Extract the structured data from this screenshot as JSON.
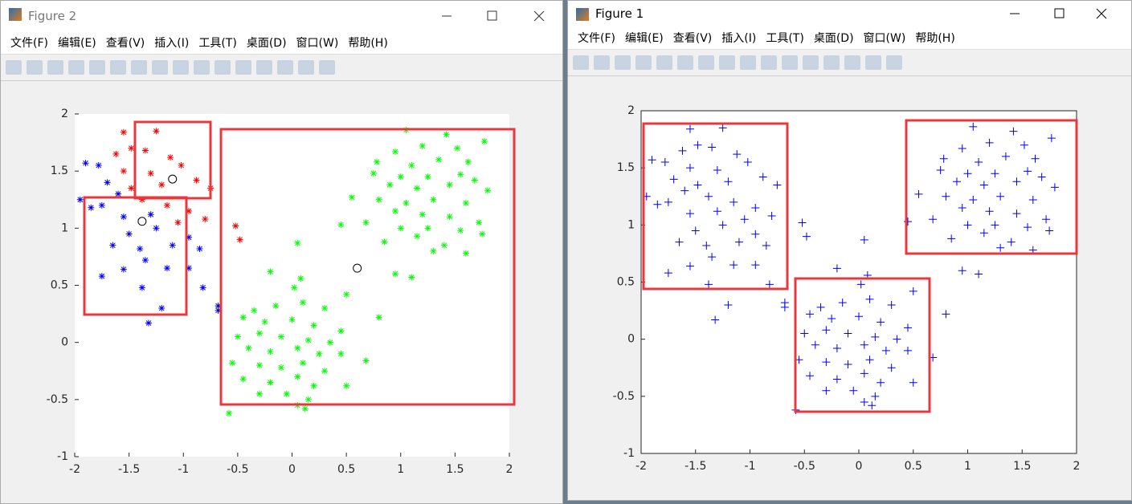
{
  "windows": [
    {
      "title": "Figure 2",
      "menu": [
        "文件(F)",
        "编辑(E)",
        "查看(V)",
        "插入(I)",
        "工具(T)",
        "桌面(D)",
        "窗口(W)",
        "帮助(H)"
      ]
    },
    {
      "title": "Figure 1",
      "menu": [
        "文件(F)",
        "编辑(E)",
        "查看(V)",
        "插入(I)",
        "工具(T)",
        "桌面(D)",
        "窗口(W)",
        "帮助(H)"
      ]
    }
  ],
  "chart_data": [
    {
      "type": "scatter",
      "box": false,
      "xlim": [
        -2,
        2
      ],
      "ylim": [
        -1,
        2
      ],
      "xticks": [
        -2,
        -1.5,
        -1,
        -0.5,
        0,
        0.5,
        1,
        1.5,
        2
      ],
      "yticks": [
        -1,
        -0.5,
        0,
        0.5,
        1,
        1.5,
        2
      ],
      "series": [
        {
          "color": "#ff0000",
          "marker": "*",
          "x": [
            -1.55,
            -1.25,
            -1.62,
            -1.48,
            -1.35,
            -1.12,
            -1.55,
            -1.3,
            -1.02,
            -0.88,
            -1.48,
            -1.2,
            -0.75,
            -1.38,
            -1.15,
            -0.95,
            -0.8,
            -1.05,
            -0.52,
            -0.48
          ],
          "y": [
            1.84,
            1.85,
            1.65,
            1.7,
            1.68,
            1.62,
            1.5,
            1.48,
            1.55,
            1.42,
            1.35,
            1.38,
            1.35,
            1.25,
            1.2,
            1.15,
            1.08,
            1.05,
            1.02,
            0.9
          ]
        },
        {
          "color": "#0000ff",
          "marker": "*",
          "x": [
            -1.78,
            -1.9,
            -1.7,
            -1.95,
            -1.75,
            -1.6,
            -1.85,
            -1.55,
            -1.3,
            -1.5,
            -1.25,
            -0.95,
            -1.65,
            -1.4,
            -1.1,
            -0.85,
            -1.35,
            -1.15,
            -0.95,
            -1.55,
            -1.75,
            -1.38,
            -0.82,
            -1.2,
            -1.32,
            -0.68,
            -0.68
          ],
          "y": [
            1.55,
            1.57,
            1.4,
            1.25,
            1.2,
            1.3,
            1.18,
            1.1,
            1.12,
            0.95,
            1.0,
            0.92,
            0.85,
            0.82,
            0.85,
            0.82,
            0.72,
            0.65,
            0.65,
            0.64,
            0.58,
            0.48,
            0.48,
            0.3,
            0.17,
            0.32,
            0.28
          ]
        },
        {
          "color": "#00ff00",
          "marker": "*",
          "x": [
            1.05,
            1.42,
            1.77,
            0.95,
            1.2,
            1.52,
            0.78,
            1.1,
            1.35,
            1.62,
            0.75,
            1.0,
            1.25,
            1.55,
            1.68,
            0.9,
            1.15,
            1.45,
            1.8,
            0.55,
            0.8,
            1.05,
            1.3,
            1.6,
            0.95,
            1.2,
            1.45,
            1.72,
            0.68,
            1.0,
            1.25,
            1.55,
            0.45,
            0.85,
            1.15,
            1.75,
            1.4,
            1.3,
            1.6,
            0.95,
            1.1,
            0.8,
            0.05,
            0.08,
            0.02,
            -0.2,
            0.5,
            -0.35,
            -0.15,
            0.1,
            0.3,
            -0.45,
            -0.25,
            0.0,
            0.2,
            0.45,
            -0.5,
            -0.3,
            -0.1,
            0.15,
            0.35,
            -0.4,
            -0.2,
            0.05,
            0.25,
            0.45,
            -0.55,
            -0.3,
            -0.1,
            0.1,
            0.3,
            0.68,
            -0.45,
            -0.2,
            0.05,
            0.2,
            -0.3,
            -0.05,
            0.15,
            0.5,
            -0.58,
            0.05,
            0.12
          ],
          "y": [
            1.86,
            1.82,
            1.76,
            1.67,
            1.72,
            1.7,
            1.58,
            1.55,
            1.6,
            1.58,
            1.48,
            1.45,
            1.45,
            1.47,
            1.42,
            1.38,
            1.35,
            1.38,
            1.33,
            1.27,
            1.25,
            1.22,
            1.25,
            1.22,
            1.15,
            1.12,
            1.1,
            1.05,
            1.05,
            1.0,
            1.0,
            0.98,
            1.03,
            0.88,
            0.93,
            0.95,
            0.85,
            0.8,
            0.78,
            0.6,
            0.57,
            0.22,
            0.87,
            0.56,
            0.48,
            0.62,
            0.42,
            0.28,
            0.32,
            0.35,
            0.3,
            0.22,
            0.18,
            0.2,
            0.15,
            0.1,
            0.05,
            0.08,
            0.05,
            0.02,
            0.0,
            -0.05,
            -0.08,
            -0.05,
            -0.1,
            -0.1,
            -0.18,
            -0.2,
            -0.22,
            -0.18,
            -0.25,
            -0.16,
            -0.32,
            -0.35,
            -0.3,
            -0.38,
            -0.45,
            -0.45,
            -0.5,
            -0.38,
            -0.62,
            -0.55,
            -0.58
          ]
        },
        {
          "color": "#000000",
          "marker": "o",
          "x": [
            -1.1,
            -1.38,
            0.6
          ],
          "y": [
            1.43,
            1.06,
            0.65
          ]
        }
      ]
    },
    {
      "type": "scatter",
      "box": true,
      "xlim": [
        -2,
        2
      ],
      "ylim": [
        -1,
        2
      ],
      "xticks": [
        -2,
        -1.5,
        -1,
        -0.5,
        0,
        0.5,
        1,
        1.5,
        2
      ],
      "yticks": [
        -1,
        -0.5,
        0,
        0.5,
        1,
        1.5,
        2
      ],
      "series": [
        {
          "color": "#0000ff",
          "marker": "+",
          "x": [
            -1.55,
            -1.25,
            -1.62,
            -1.48,
            -1.35,
            -1.12,
            -1.78,
            -1.9,
            -1.55,
            -1.3,
            -1.02,
            -0.88,
            -1.7,
            -1.48,
            -1.2,
            -0.75,
            -1.95,
            -1.75,
            -1.6,
            -1.38,
            -1.15,
            -0.95,
            -1.85,
            -1.55,
            -1.3,
            -1.05,
            -0.8,
            -1.5,
            -1.25,
            -0.95,
            -1.65,
            -1.4,
            -1.1,
            -0.85,
            -1.35,
            -1.15,
            -0.95,
            -1.55,
            -1.75,
            -1.38,
            -0.82,
            -1.2,
            -1.32,
            1.05,
            1.42,
            1.77,
            0.95,
            1.2,
            1.52,
            0.78,
            1.1,
            1.35,
            1.62,
            0.75,
            1.0,
            1.25,
            1.55,
            1.68,
            0.9,
            1.15,
            1.45,
            1.8,
            0.55,
            0.8,
            1.05,
            1.3,
            1.6,
            0.95,
            1.2,
            1.45,
            1.72,
            0.68,
            1.0,
            1.25,
            1.55,
            0.45,
            0.85,
            1.15,
            1.75,
            1.4,
            1.3,
            1.6,
            0.95,
            1.1,
            0.8,
            0.05,
            0.08,
            0.02,
            -0.2,
            0.5,
            -0.35,
            -0.15,
            0.1,
            0.3,
            -0.45,
            -0.25,
            0.0,
            0.2,
            0.45,
            -0.5,
            -0.3,
            -0.1,
            0.15,
            0.35,
            -0.4,
            -0.2,
            0.05,
            0.25,
            0.45,
            -0.55,
            -0.3,
            -0.1,
            0.1,
            0.3,
            0.68,
            -0.45,
            -0.2,
            0.05,
            0.2,
            -0.3,
            -0.05,
            0.15,
            0.5,
            -0.58,
            0.05,
            0.12,
            -0.52,
            -0.48,
            -0.68,
            -0.68
          ],
          "y": [
            1.84,
            1.85,
            1.65,
            1.7,
            1.68,
            1.62,
            1.55,
            1.57,
            1.5,
            1.48,
            1.55,
            1.42,
            1.4,
            1.35,
            1.38,
            1.35,
            1.25,
            1.2,
            1.3,
            1.25,
            1.2,
            1.15,
            1.18,
            1.1,
            1.12,
            1.05,
            1.08,
            0.95,
            1.0,
            0.92,
            0.85,
            0.82,
            0.85,
            0.82,
            0.72,
            0.65,
            0.65,
            0.64,
            0.58,
            0.48,
            0.48,
            0.3,
            0.17,
            1.86,
            1.82,
            1.76,
            1.67,
            1.72,
            1.7,
            1.58,
            1.55,
            1.6,
            1.58,
            1.48,
            1.45,
            1.45,
            1.47,
            1.42,
            1.38,
            1.35,
            1.38,
            1.33,
            1.27,
            1.25,
            1.22,
            1.25,
            1.22,
            1.15,
            1.12,
            1.1,
            1.05,
            1.05,
            1.0,
            1.0,
            0.98,
            1.03,
            0.88,
            0.93,
            0.95,
            0.85,
            0.8,
            0.78,
            0.6,
            0.57,
            0.22,
            0.87,
            0.56,
            0.48,
            0.62,
            0.42,
            0.28,
            0.32,
            0.35,
            0.3,
            0.22,
            0.18,
            0.2,
            0.15,
            0.1,
            0.05,
            0.08,
            0.05,
            0.02,
            0.0,
            -0.05,
            -0.08,
            -0.05,
            -0.1,
            -0.1,
            -0.18,
            -0.2,
            -0.22,
            -0.18,
            -0.25,
            -0.16,
            -0.32,
            -0.35,
            -0.3,
            -0.38,
            -0.45,
            -0.45,
            -0.5,
            -0.38,
            -0.62,
            -0.55,
            -0.58,
            1.02,
            0.9,
            0.32,
            0.28
          ]
        }
      ]
    }
  ]
}
